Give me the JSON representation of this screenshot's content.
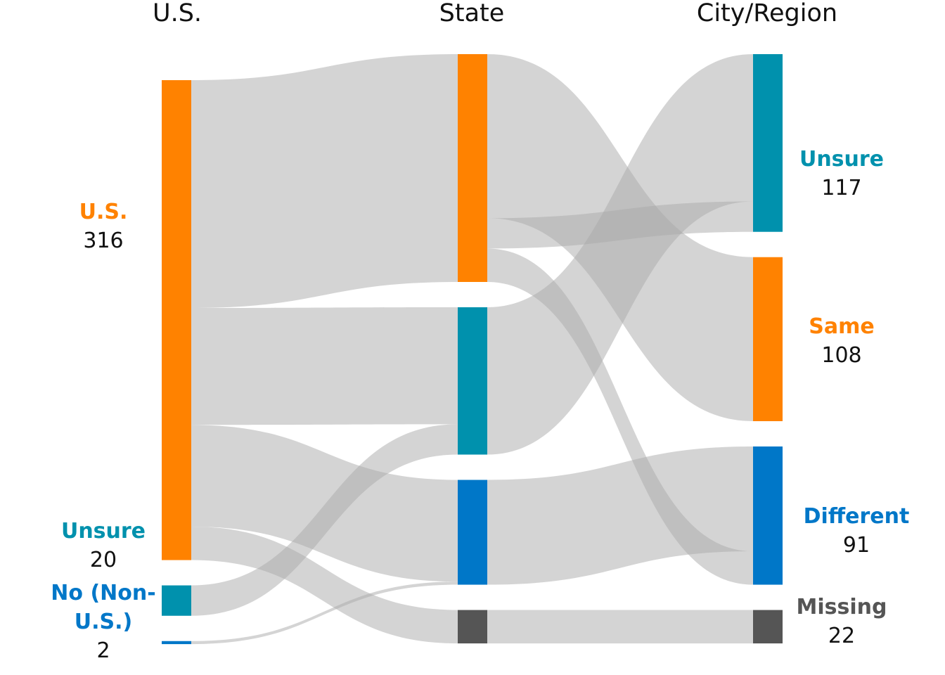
{
  "chart_data": {
    "type": "sankey",
    "columns": [
      "U.S.",
      "State",
      "City/Region"
    ],
    "nodes": [
      {
        "label": "U.S.",
        "value": 316,
        "column": 0,
        "color": "#ff8200"
      },
      {
        "label": "Unsure",
        "value": 20,
        "column": 0,
        "color": "#0091ad"
      },
      {
        "label": "No (Non-U.S.)",
        "value": 2,
        "column": 0,
        "color": "#0077c8"
      },
      {
        "label": null,
        "value": 150,
        "column": 1,
        "color": "#ff8200"
      },
      {
        "label": null,
        "value": 97,
        "column": 1,
        "color": "#0091ad"
      },
      {
        "label": null,
        "value": 69,
        "column": 1,
        "color": "#0077c8"
      },
      {
        "label": null,
        "value": 22,
        "column": 1,
        "color": "#555555"
      },
      {
        "label": "Unsure",
        "value": 117,
        "column": 2,
        "color": "#0091ad"
      },
      {
        "label": "Same",
        "value": 108,
        "column": 2,
        "color": "#ff8200"
      },
      {
        "label": "Different",
        "value": 91,
        "column": 2,
        "color": "#0077c8"
      },
      {
        "label": "Missing",
        "value": 22,
        "column": 2,
        "color": "#555555"
      }
    ],
    "links": [
      {
        "source": 0,
        "target": 3,
        "value": 150
      },
      {
        "source": 0,
        "target": 4,
        "value": 77
      },
      {
        "source": 0,
        "target": 5,
        "value": 67
      },
      {
        "source": 0,
        "target": 6,
        "value": 22
      },
      {
        "source": 1,
        "target": 4,
        "value": 20
      },
      {
        "source": 2,
        "target": 5,
        "value": 2
      },
      {
        "source": 4,
        "target": 7,
        "value": 97
      },
      {
        "source": 3,
        "target": 8,
        "value": 108
      },
      {
        "source": 3,
        "target": 7,
        "value": 20
      },
      {
        "source": 5,
        "target": 9,
        "value": 69
      },
      {
        "source": 3,
        "target": 9,
        "value": 22
      },
      {
        "source": 6,
        "target": 10,
        "value": 22
      }
    ],
    "link_color": "#aaaaaa"
  }
}
